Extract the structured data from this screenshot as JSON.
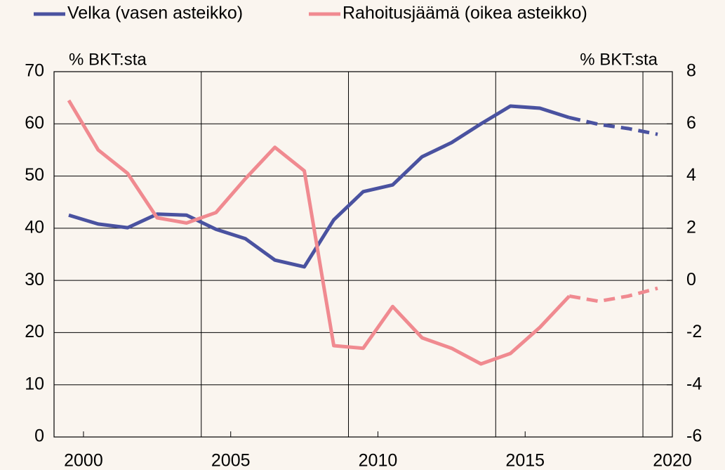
{
  "chart_data": {
    "type": "line",
    "y_unit": "% BKT:sta",
    "y2_unit": "% BKT:sta",
    "x": [
      1999.5,
      2000.5,
      2001.5,
      2002.5,
      2003.5,
      2004.5,
      2005.5,
      2006.5,
      2007.5,
      2008.5,
      2009.5,
      2010.5,
      2011.5,
      2012.5,
      2013.5,
      2014.5,
      2015.5,
      2016.5,
      2017.5,
      2018.5,
      2019.5
    ],
    "series": [
      {
        "name": "Velka (vasen asteikko)",
        "color": "#4a52a0",
        "axis": "y",
        "values": [
          42.5,
          40.8,
          40.1,
          42.7,
          42.5,
          39.8,
          38.0,
          33.9,
          32.6,
          41.6,
          47.0,
          48.3,
          53.7,
          56.4,
          60.0,
          63.4,
          63.0,
          61.2,
          59.9,
          59.1,
          58.0
        ]
      },
      {
        "name": "Rahoitusjäämä (oikea asteikko)",
        "color": "#f08a90",
        "axis": "y2",
        "values": [
          6.9,
          5.0,
          4.1,
          2.4,
          2.2,
          2.6,
          3.9,
          5.1,
          4.2,
          -2.5,
          -2.6,
          -1.0,
          -2.2,
          -2.6,
          -3.2,
          -2.8,
          -1.8,
          -0.6,
          -0.8,
          -0.6,
          -0.3
        ]
      }
    ],
    "dashed_from_index": 17,
    "xlim": [
      1999,
      2020
    ],
    "xticks": [
      2000,
      2005,
      2010,
      2015,
      2020
    ],
    "xgrid": [
      2004,
      2009,
      2014,
      2019
    ],
    "ylim": [
      0,
      70
    ],
    "yticks": [
      0,
      10,
      20,
      30,
      40,
      50,
      60,
      70
    ],
    "y2lim": [
      -6,
      8
    ],
    "y2ticks": [
      -6,
      -4,
      -2,
      0,
      2,
      4,
      6,
      8
    ],
    "grid": true,
    "legend": "top"
  }
}
